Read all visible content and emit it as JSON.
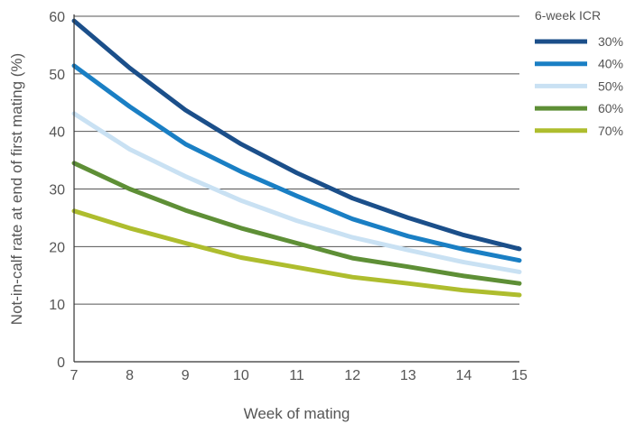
{
  "chart_data": {
    "type": "line",
    "title": "",
    "xlabel": "Week of mating",
    "ylabel": "Not-in-calf rate at end of first mating (%)",
    "x": [
      7,
      8,
      9,
      10,
      11,
      12,
      13,
      14,
      15
    ],
    "xlim": [
      7,
      15
    ],
    "ylim": [
      0,
      60
    ],
    "xticks": [
      7,
      8,
      9,
      10,
      11,
      12,
      13,
      14,
      15
    ],
    "yticks": [
      0,
      10,
      20,
      30,
      40,
      50,
      60
    ],
    "grid": "horizontal",
    "legend_title": "6-week ICR",
    "legend_placement": "right",
    "series": [
      {
        "name": "30%",
        "color": "#1b4f8a",
        "values": [
          59.2,
          51.0,
          43.7,
          37.8,
          32.8,
          28.4,
          25.0,
          22.0,
          19.6
        ]
      },
      {
        "name": "40%",
        "color": "#1a7fc4",
        "values": [
          51.4,
          44.3,
          37.8,
          33.0,
          28.8,
          24.8,
          21.8,
          19.5,
          17.6
        ]
      },
      {
        "name": "50%",
        "color": "#c9e1f3",
        "values": [
          43.1,
          36.9,
          32.2,
          28.0,
          24.5,
          21.6,
          19.4,
          17.3,
          15.6
        ]
      },
      {
        "name": "60%",
        "color": "#5e8f36",
        "values": [
          34.5,
          30.0,
          26.3,
          23.2,
          20.6,
          18.0,
          16.5,
          14.9,
          13.6
        ]
      },
      {
        "name": "70%",
        "color": "#aebd2e",
        "values": [
          26.2,
          23.2,
          20.6,
          18.1,
          16.4,
          14.7,
          13.6,
          12.4,
          11.6
        ]
      }
    ]
  }
}
